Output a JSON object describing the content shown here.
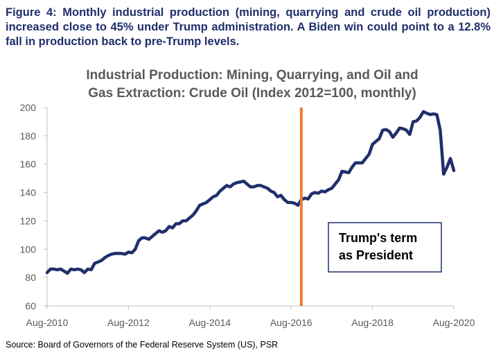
{
  "caption": "Figure 4: Monthly industrial production (mining, quarrying and crude oil production) increased close to 45% under Trump administration. A Biden win could point to a 12.8% fall in production back to pre-Trump levels.",
  "source": "Source: Board of Governors of the Federal Reserve System (US), PSR",
  "chart_data": {
    "type": "line",
    "title_line1": "Industrial Production: Mining, Quarrying, and Oil and",
    "title_line2": "Gas Extraction: Crude Oil (Index 2012=100, monthly)",
    "xlabel": "",
    "ylabel": "",
    "ylim": [
      60,
      200
    ],
    "yticks": [
      60,
      80,
      100,
      120,
      140,
      160,
      180,
      200
    ],
    "xticks": [
      "Aug-2010",
      "Aug-2012",
      "Aug-2014",
      "Aug-2016",
      "Aug-2018",
      "Aug-2020"
    ],
    "xrange": [
      "2010-08",
      "2020-08"
    ],
    "grid": false,
    "line_color": "#1f2f6b",
    "marker": {
      "date": "2016-11",
      "color": "#ed7d31"
    },
    "annotation": {
      "line1": "Trump's term",
      "line2": "as President"
    },
    "series": [
      {
        "dates": [
          "2010-08",
          "2010-09",
          "2010-10",
          "2010-11",
          "2010-12",
          "2011-01",
          "2011-02",
          "2011-03",
          "2011-04",
          "2011-05",
          "2011-06",
          "2011-07",
          "2011-08",
          "2011-09",
          "2011-10",
          "2011-11",
          "2011-12",
          "2012-01",
          "2012-02",
          "2012-03",
          "2012-04",
          "2012-05",
          "2012-06",
          "2012-07",
          "2012-08",
          "2012-09",
          "2012-10",
          "2012-11",
          "2012-12",
          "2013-01",
          "2013-02",
          "2013-03",
          "2013-04",
          "2013-05",
          "2013-06",
          "2013-07",
          "2013-08",
          "2013-09",
          "2013-10",
          "2013-11",
          "2013-12",
          "2014-01",
          "2014-02",
          "2014-03",
          "2014-04",
          "2014-05",
          "2014-06",
          "2014-07",
          "2014-08",
          "2014-09",
          "2014-10",
          "2014-11",
          "2014-12",
          "2015-01",
          "2015-02",
          "2015-03",
          "2015-04",
          "2015-05",
          "2015-06",
          "2015-07",
          "2015-08",
          "2015-09",
          "2015-10",
          "2015-11",
          "2015-12",
          "2016-01",
          "2016-02",
          "2016-03",
          "2016-04",
          "2016-05",
          "2016-06",
          "2016-07",
          "2016-08",
          "2016-09",
          "2016-10",
          "2016-11",
          "2016-12",
          "2017-01",
          "2017-02",
          "2017-03",
          "2017-04",
          "2017-05",
          "2017-06",
          "2017-07",
          "2017-08",
          "2017-09",
          "2017-10",
          "2017-11",
          "2017-12",
          "2018-01",
          "2018-02",
          "2018-03",
          "2018-04",
          "2018-05",
          "2018-06",
          "2018-07",
          "2018-08",
          "2018-09",
          "2018-10",
          "2018-11",
          "2018-12",
          "2019-01",
          "2019-02",
          "2019-03",
          "2019-04",
          "2019-05",
          "2019-06",
          "2019-07",
          "2019-08",
          "2019-09",
          "2019-10",
          "2019-11",
          "2019-12",
          "2020-01",
          "2020-02",
          "2020-03",
          "2020-04",
          "2020-05",
          "2020-06",
          "2020-07",
          "2020-08"
        ],
        "values": [
          83.5,
          86,
          86,
          85.5,
          86,
          84.5,
          83,
          86,
          85.5,
          86,
          85.5,
          83.5,
          86,
          85.5,
          90,
          91,
          92,
          94,
          95.5,
          96.5,
          97,
          97,
          97,
          96.5,
          98,
          97.5,
          100,
          106,
          108,
          108,
          107,
          109,
          111,
          113,
          112,
          113,
          116,
          115,
          118,
          118,
          120,
          120,
          122,
          124,
          127,
          131,
          132,
          133,
          135,
          137,
          138,
          141,
          143,
          145,
          144,
          146,
          147,
          147.5,
          148,
          146,
          144,
          144,
          145,
          145,
          144,
          143,
          141,
          140,
          137,
          138,
          135,
          133,
          133,
          132.5,
          131,
          135,
          136,
          135.5,
          139,
          140,
          139.5,
          141,
          140.5,
          142,
          143,
          146,
          149,
          155,
          154.5,
          154,
          158,
          161,
          161,
          161,
          164,
          167,
          174,
          176,
          178,
          184,
          184.5,
          183,
          179,
          182,
          185.5,
          185,
          184,
          181,
          190,
          190.5,
          193,
          197,
          196,
          195,
          195.5,
          195,
          184,
          153,
          158,
          164,
          155.5
        ]
      }
    ]
  }
}
